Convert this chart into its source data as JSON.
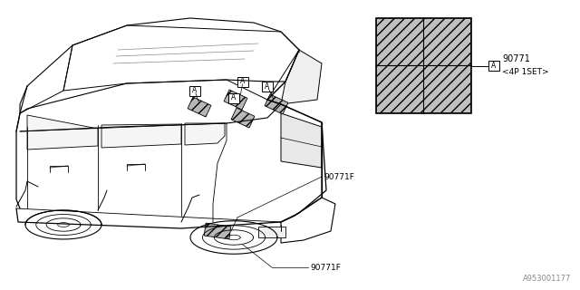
{
  "background_color": "#ffffff",
  "line_color": "#000000",
  "part_number_main": "90771",
  "part_number_sub": "<4P 1SET>",
  "part_label_F": "90771F",
  "part_label_F2": "90771F",
  "diagram_number": "A953001177",
  "label_A": "A",
  "text_color": "#000000",
  "grid_color": "#c0c0c0"
}
